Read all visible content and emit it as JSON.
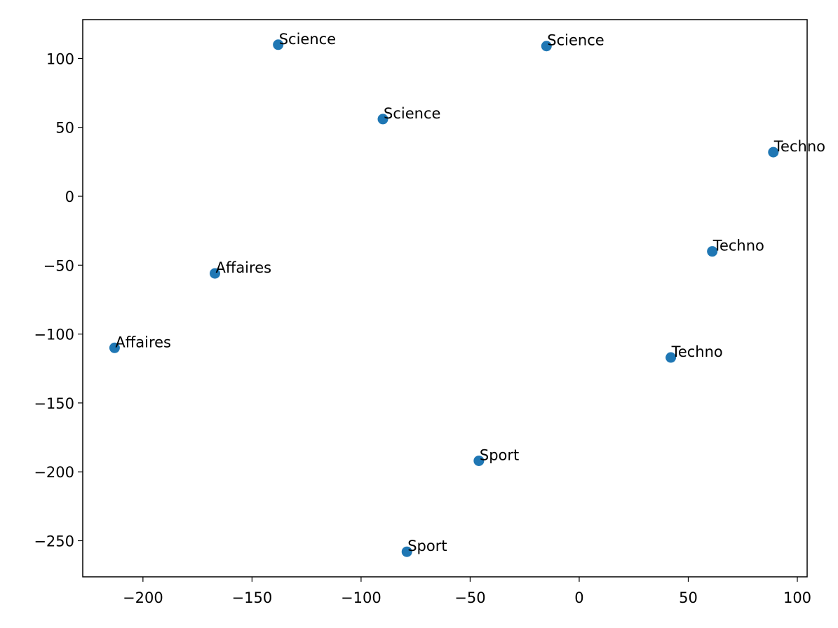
{
  "chart_data": {
    "type": "scatter",
    "x": [
      -138,
      -15,
      -90,
      89,
      61,
      42,
      -167,
      -213,
      -46,
      -79
    ],
    "values": [
      110,
      109,
      56,
      32,
      -40,
      -117,
      -56,
      -110,
      -192,
      -258
    ],
    "point_labels": [
      "Science",
      "Science",
      "Science",
      "Techno",
      "Techno",
      "Techno",
      "Affaires",
      "Affaires",
      "Sport",
      "Sport"
    ],
    "color": "#1f77b4",
    "xlim": [
      -227.6,
      104.5
    ],
    "ylim": [
      -276.2,
      128.2
    ],
    "xticks": [
      {
        "value": -200,
        "label": "−200"
      },
      {
        "value": -150,
        "label": "−150"
      },
      {
        "value": -100,
        "label": "−100"
      },
      {
        "value": -50,
        "label": "−50"
      },
      0,
      50,
      100
    ],
    "yticks": [
      {
        "value": -250,
        "label": "−250"
      },
      {
        "value": -200,
        "label": "−200"
      },
      {
        "value": -150,
        "label": "−150"
      },
      {
        "value": -100,
        "label": "−100"
      },
      {
        "value": -50,
        "label": "−50"
      },
      0,
      50,
      100
    ],
    "grid": false
  }
}
